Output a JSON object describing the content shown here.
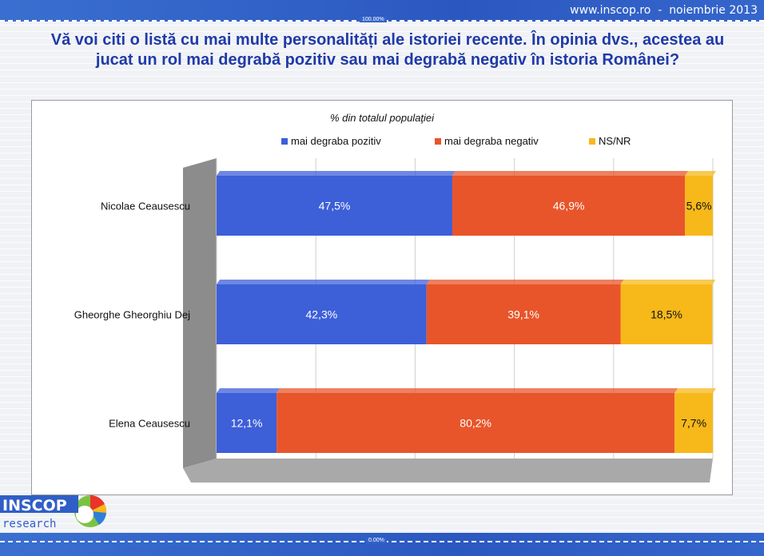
{
  "header": {
    "site": "www.inscop.ro",
    "separator": "-",
    "date": "noiembrie 2013",
    "top_scale_label": "100.00%",
    "bottom_scale_label": "0.00%"
  },
  "title": "Vă voi citi o listă cu mai multe personalități ale istoriei recente. În opinia dvs., acestea au jucat un rol mai degrabă pozitiv sau mai degrabă negativ în istoria Românei?",
  "logo": {
    "text_main": "INSCOP",
    "text_sub": "research"
  },
  "colors": {
    "pozitiv": "#3d5fd8",
    "negativ": "#e8552a",
    "nsnr": "#f7b81a",
    "title": "#1f3aa8",
    "band": "#2f5fc6"
  },
  "chart_data": {
    "type": "bar",
    "orientation": "horizontal",
    "stacked": true,
    "title": "% din totalul populaţiei",
    "categories": [
      "Nicolae Ceausescu",
      "Gheorghe Gheorghiu Dej",
      "Elena Ceausescu"
    ],
    "series": [
      {
        "name": "mai degraba pozitiv",
        "values": [
          47.5,
          42.3,
          12.1
        ],
        "labels": [
          "47,5%",
          "42,3%",
          "12,1%"
        ]
      },
      {
        "name": "mai degraba negativ",
        "values": [
          46.9,
          39.1,
          80.2
        ],
        "labels": [
          "46,9%",
          "39,1%",
          "80,2%"
        ]
      },
      {
        "name": "NS/NR",
        "values": [
          5.6,
          18.5,
          7.7
        ],
        "labels": [
          "5,6%",
          "18,5%",
          "7,7%"
        ]
      }
    ],
    "xlim": [
      0,
      100
    ],
    "grid": true,
    "legend": "top"
  }
}
